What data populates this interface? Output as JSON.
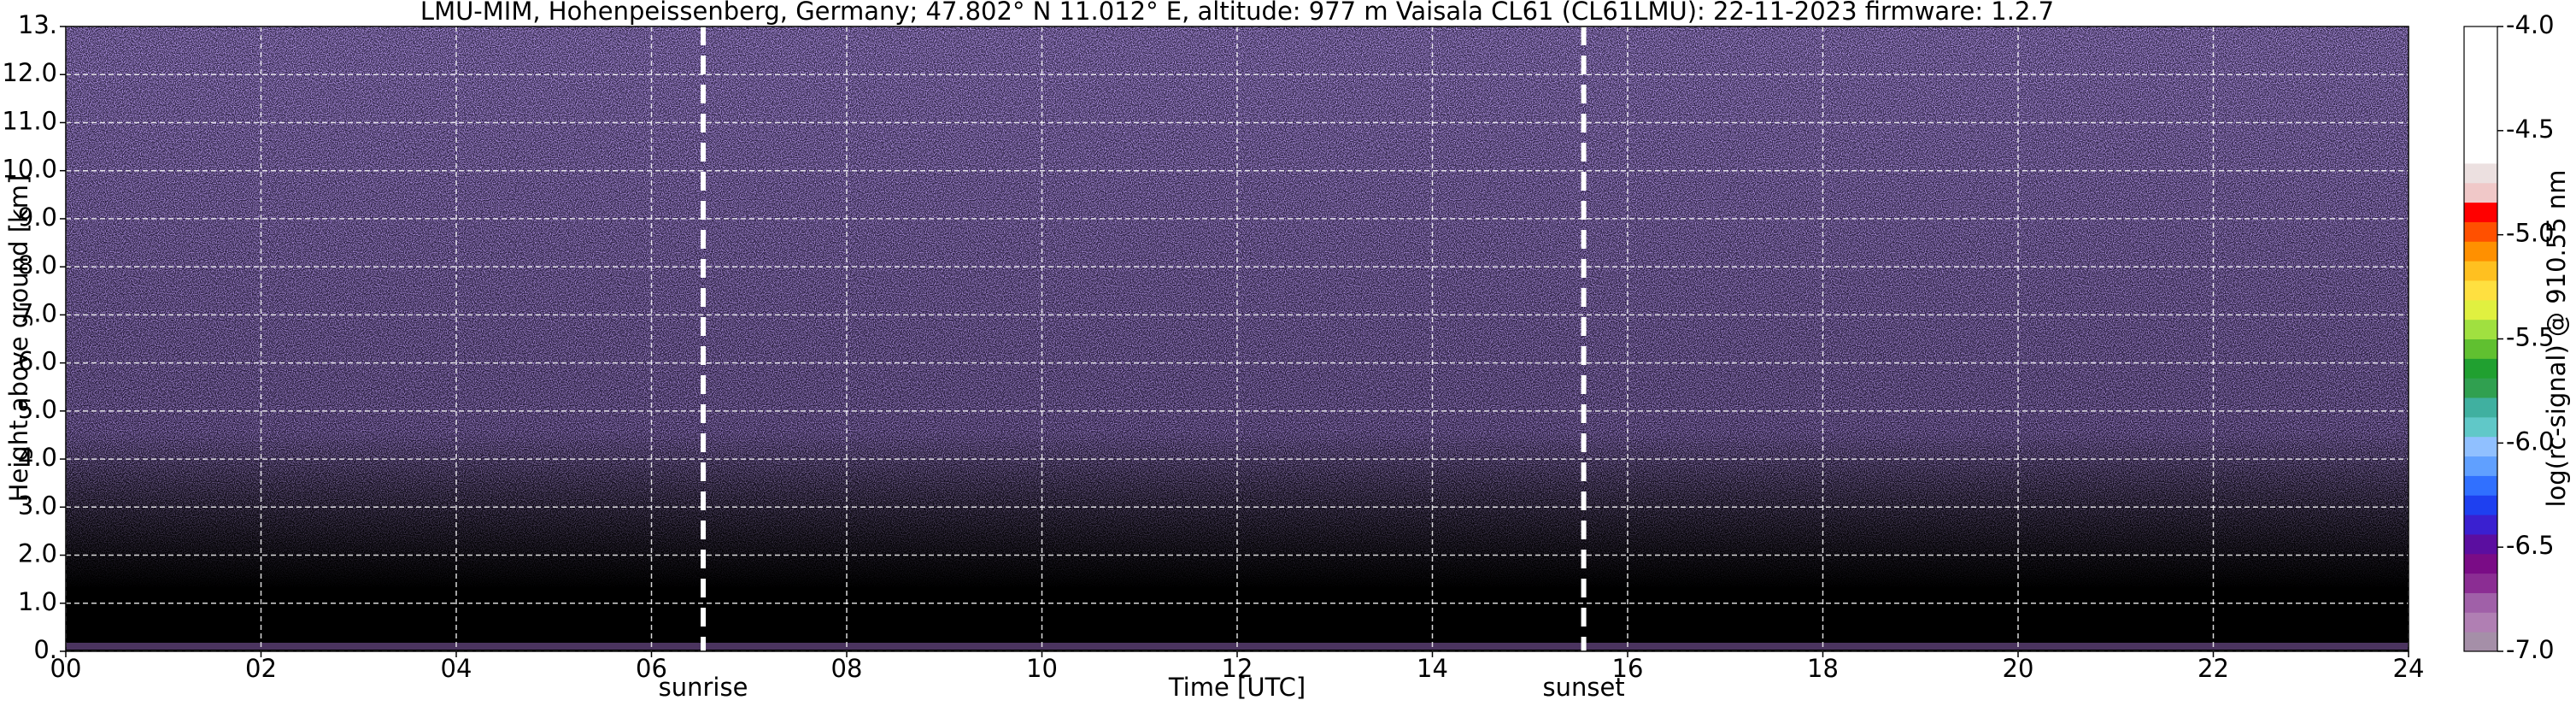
{
  "chart_data": {
    "type": "heatmap",
    "title": "LMU-MIM, Hohenpeissenberg, Germany; 47.802° N 11.012° E, altitude: 977 m    Vaisala CL61 (CL61LMU): 22-11-2023    firmware: 1.2.7",
    "x_label": "Time [UTC]",
    "y_label": "Height above ground [km]",
    "xlim": [
      0,
      24
    ],
    "xticks": [
      {
        "value": 0,
        "label": "00"
      },
      {
        "value": 2,
        "label": "02"
      },
      {
        "value": 4,
        "label": "04"
      },
      {
        "value": 6,
        "label": "06"
      },
      {
        "value": 8,
        "label": "08"
      },
      10,
      12,
      14,
      16,
      18,
      20,
      22,
      24
    ],
    "ylim": [
      0,
      13
    ],
    "yticks": [
      {
        "value": 0,
        "label": "0."
      },
      {
        "value": 1,
        "label": "1.0"
      },
      {
        "value": 2,
        "label": "2.0"
      },
      {
        "value": 3,
        "label": "3.0"
      },
      {
        "value": 4,
        "label": "4.0"
      },
      {
        "value": 5,
        "label": "5.0"
      },
      {
        "value": 6,
        "label": "6.0"
      },
      {
        "value": 7,
        "label": "7.0"
      },
      {
        "value": 8,
        "label": "8.0"
      },
      {
        "value": 9,
        "label": "9.0"
      },
      {
        "value": 10,
        "label": "10.0"
      },
      {
        "value": 11,
        "label": "11.0"
      },
      {
        "value": 12,
        "label": "12.0"
      },
      {
        "value": 13,
        "label": "13."
      }
    ],
    "grid": true,
    "annotations": [
      {
        "label": "sunrise",
        "x": 6.53
      },
      {
        "label": "sunset",
        "x": 15.55
      }
    ],
    "colorbar": {
      "label": "log(rc-signal) @ 910.55 nm",
      "lim": [
        -7,
        -4
      ],
      "ticks": [
        {
          "value": -4,
          "label": "-4.0"
        },
        -4.5,
        {
          "value": -5,
          "label": "-5.0"
        },
        -5.5,
        {
          "value": -6,
          "label": "-6.0"
        },
        -6.5,
        {
          "value": -7,
          "label": "-7.0"
        }
      ],
      "colors": [
        "#a58fa8",
        "#b07fb3",
        "#a060a8",
        "#8b2d93",
        "#7a0c86",
        "#5b0ea0",
        "#3a20d0",
        "#1e40f0",
        "#3070ff",
        "#60a0ff",
        "#90c0ff",
        "#60c8c8",
        "#40b0a0",
        "#30a050",
        "#20a030",
        "#60c030",
        "#a0e040",
        "#e0f040",
        "#ffe040",
        "#ffc020",
        "#ff9000",
        "#ff5000",
        "#ff0000",
        "#f0c8c8",
        "#ece0e0",
        "#ffffff",
        "#ffffff",
        "#ffffff",
        "#ffffff",
        "#ffffff",
        "#ffffff",
        "#ffffff"
      ]
    }
  }
}
